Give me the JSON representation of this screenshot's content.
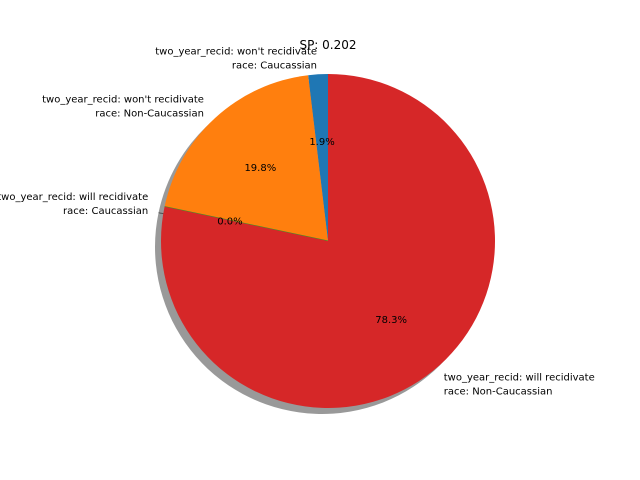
{
  "chart_data": {
    "type": "pie",
    "title": "SP: 0.202",
    "slices": [
      {
        "label_lines": [
          "two_year_recid: won't recidivate",
          "race: Caucassian"
        ],
        "value": 1.9,
        "pct_label": "1.9%",
        "color": "#1f77b4"
      },
      {
        "label_lines": [
          "two_year_recid: won't recidivate",
          "race: Non-Caucassian"
        ],
        "value": 19.8,
        "pct_label": "19.8%",
        "color": "#ff7f0e"
      },
      {
        "label_lines": [
          "two_year_recid: will recidivate",
          "race: Caucassian"
        ],
        "value": 0.0,
        "pct_label": "0.0%",
        "color": "#2ca02c"
      },
      {
        "label_lines": [
          "two_year_recid: will recidivate",
          "race: Non-Caucassian"
        ],
        "value": 78.3,
        "pct_label": "78.3%",
        "color": "#d62728"
      }
    ],
    "shadow": true,
    "legend": "none"
  }
}
